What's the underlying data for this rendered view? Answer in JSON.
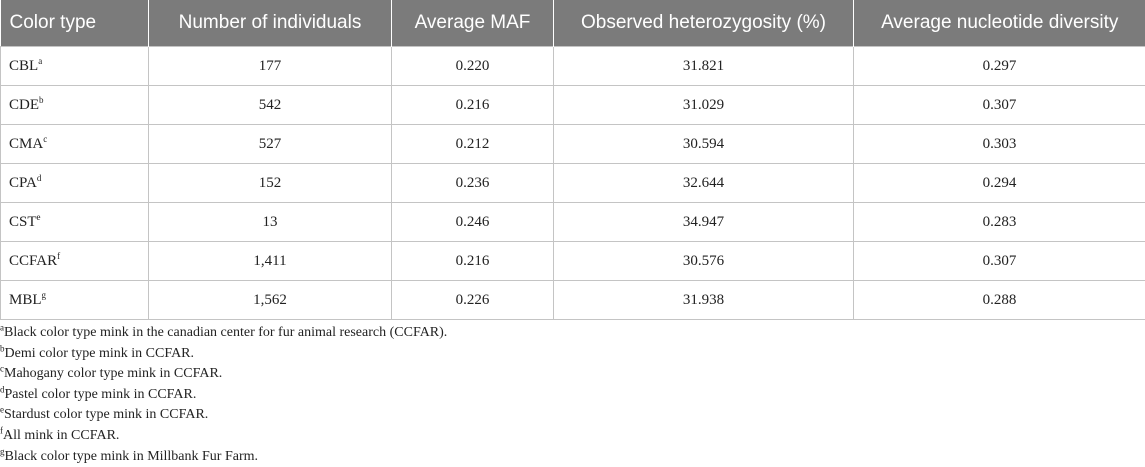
{
  "table": {
    "headers": [
      "Color type",
      "Number of individuals",
      "Average MAF",
      "Observed heterozygosity (%)",
      "Average nucleotide diversity"
    ],
    "rows": [
      {
        "type": "CBL",
        "sup": "a",
        "n": "177",
        "maf": "0.220",
        "het": "31.821",
        "div": "0.297"
      },
      {
        "type": "CDE",
        "sup": "b",
        "n": "542",
        "maf": "0.216",
        "het": "31.029",
        "div": "0.307"
      },
      {
        "type": "CMA",
        "sup": "c",
        "n": "527",
        "maf": "0.212",
        "het": "30.594",
        "div": "0.303"
      },
      {
        "type": "CPA",
        "sup": "d",
        "n": "152",
        "maf": "0.236",
        "het": "32.644",
        "div": "0.294"
      },
      {
        "type": "CST",
        "sup": "e",
        "n": "13",
        "maf": "0.246",
        "het": "34.947",
        "div": "0.283"
      },
      {
        "type": "CCFAR",
        "sup": "f",
        "n": "1,411",
        "maf": "0.216",
        "het": "30.576",
        "div": "0.307"
      },
      {
        "type": "MBL",
        "sup": "g",
        "n": "1,562",
        "maf": "0.226",
        "het": "31.938",
        "div": "0.288"
      }
    ]
  },
  "footnotes": [
    {
      "sup": "a",
      "text": "Black color type mink in the canadian center for fur animal research (CCFAR)."
    },
    {
      "sup": "b",
      "text": "Demi color type mink in CCFAR."
    },
    {
      "sup": "c",
      "text": "Mahogany color type mink in CCFAR."
    },
    {
      "sup": "d",
      "text": "Pastel color type mink in CCFAR."
    },
    {
      "sup": "e",
      "text": "Stardust color type mink in CCFAR."
    },
    {
      "sup": "f",
      "text": "All mink in CCFAR."
    },
    {
      "sup": "g",
      "text": "Black color type mink in Millbank Fur Farm."
    }
  ],
  "colors": {
    "header_background": "#7b7b7b",
    "header_text": "#ffffff",
    "cell_border": "#c4c4c4",
    "body_text": "#222222"
  }
}
